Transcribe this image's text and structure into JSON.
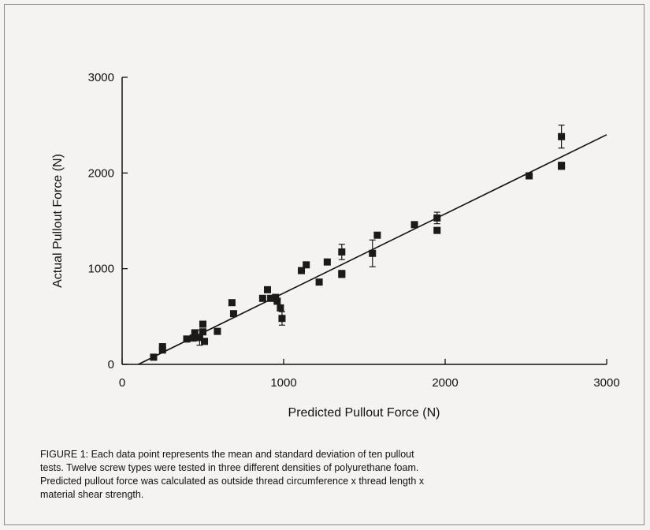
{
  "chart_data": {
    "type": "scatter",
    "xlabel": "Predicted Pullout Force (N)",
    "ylabel": "Actual Pullout Force (N)",
    "xlim": [
      0,
      3000
    ],
    "ylim": [
      0,
      3000
    ],
    "xticks": [
      "0",
      "1000",
      "2000",
      "3000"
    ],
    "yticks": [
      "0",
      "1000",
      "2000",
      "3000"
    ],
    "grid": false,
    "marker": "square",
    "color": "#1a1a1a",
    "fit_line": {
      "x": [
        100,
        3000
      ],
      "y": [
        0,
        2400
      ]
    },
    "points": [
      {
        "x": 195,
        "y": 75
      },
      {
        "x": 250,
        "y": 185
      },
      {
        "x": 250,
        "y": 150
      },
      {
        "x": 400,
        "y": 265
      },
      {
        "x": 440,
        "y": 275
      },
      {
        "x": 450,
        "y": 330
      },
      {
        "x": 480,
        "y": 280,
        "err": 80
      },
      {
        "x": 500,
        "y": 420
      },
      {
        "x": 500,
        "y": 340
      },
      {
        "x": 510,
        "y": 240
      },
      {
        "x": 590,
        "y": 345
      },
      {
        "x": 680,
        "y": 645
      },
      {
        "x": 690,
        "y": 530
      },
      {
        "x": 870,
        "y": 690
      },
      {
        "x": 900,
        "y": 780
      },
      {
        "x": 920,
        "y": 690
      },
      {
        "x": 950,
        "y": 700
      },
      {
        "x": 960,
        "y": 660
      },
      {
        "x": 980,
        "y": 590
      },
      {
        "x": 990,
        "y": 480,
        "err": 70
      },
      {
        "x": 1110,
        "y": 980
      },
      {
        "x": 1140,
        "y": 1040
      },
      {
        "x": 1220,
        "y": 860
      },
      {
        "x": 1270,
        "y": 1070
      },
      {
        "x": 1360,
        "y": 1175,
        "err": 80
      },
      {
        "x": 1360,
        "y": 950
      },
      {
        "x": 1360,
        "y": 940
      },
      {
        "x": 1550,
        "y": 1160,
        "err": 140
      },
      {
        "x": 1580,
        "y": 1350
      },
      {
        "x": 1810,
        "y": 1460
      },
      {
        "x": 1950,
        "y": 1530,
        "err": 60
      },
      {
        "x": 1950,
        "y": 1400
      },
      {
        "x": 2520,
        "y": 1970
      },
      {
        "x": 2720,
        "y": 2380,
        "err": 120
      },
      {
        "x": 2720,
        "y": 2080
      },
      {
        "x": 2720,
        "y": 2070
      }
    ]
  },
  "caption": {
    "line1": "FIGURE 1:  Each data point represents the mean and standard deviation of ten pullout",
    "line2": "tests.  Twelve screw types were tested in three different densities of polyurethane foam.",
    "line3": "Predicted pullout force was calculated as outside thread circumference x thread length x",
    "line4": "material shear strength."
  }
}
